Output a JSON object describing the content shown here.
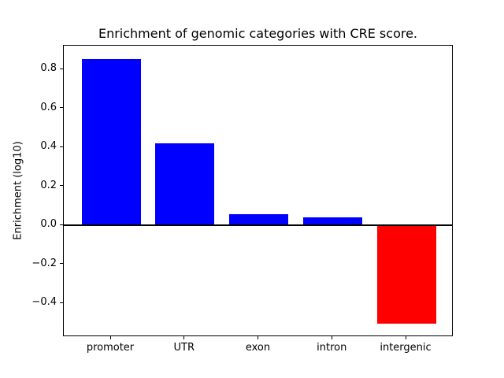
{
  "chart_data": {
    "type": "bar",
    "title": "Enrichment of genomic categories with CRE score.",
    "ylabel": "Enrichment (log10)",
    "xlabel": "",
    "categories": [
      "promoter",
      "UTR",
      "exon",
      "intron",
      "intergenic"
    ],
    "values": [
      0.855,
      0.421,
      0.058,
      0.042,
      -0.505
    ],
    "bar_colors": [
      "#0000ff",
      "#0000ff",
      "#0000ff",
      "#0000ff",
      "#ff0000"
    ],
    "bar_width": 0.8,
    "xlim": [
      -0.64,
      4.64
    ],
    "ylim": [
      -0.573,
      0.923
    ],
    "yticks": [
      -0.4,
      -0.2,
      0.0,
      0.2,
      0.4,
      0.6,
      0.8
    ],
    "grid": false,
    "legend": false,
    "zero_line": {
      "value": 0,
      "color": "#000000",
      "width": 2
    },
    "colors": {
      "positive_bar": "#0000ff",
      "negative_bar": "#ff0000",
      "axis": "#000000",
      "background": "#ffffff"
    }
  }
}
